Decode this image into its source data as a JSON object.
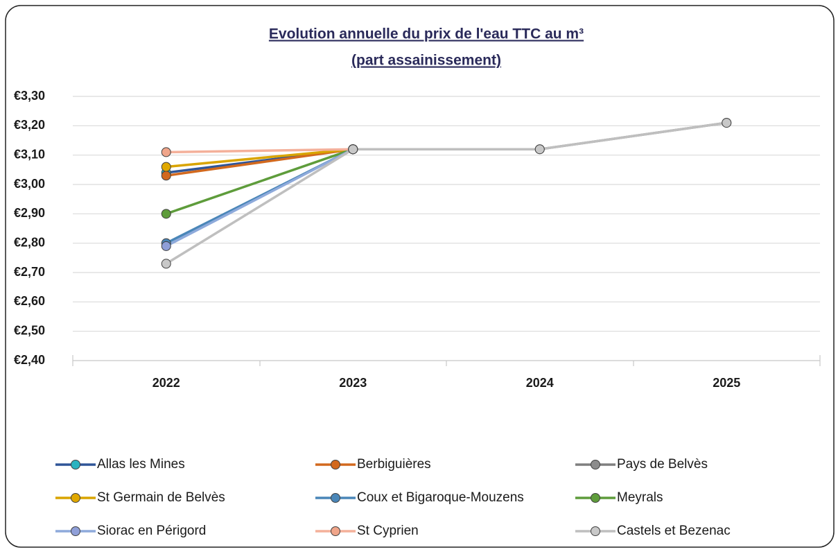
{
  "chart_data": {
    "type": "line",
    "title": "Evolution annuelle du prix de l'eau TTC au m³",
    "subtitle": "(part assainissement)",
    "categories": [
      "2022",
      "2023",
      "2024",
      "2025"
    ],
    "ylim": [
      2.4,
      3.3
    ],
    "yticks": [
      {
        "value": 2.4,
        "label": "€2,40"
      },
      {
        "value": 2.5,
        "label": "€2,50"
      },
      {
        "value": 2.6,
        "label": "€2,60"
      },
      {
        "value": 2.7,
        "label": "€2,70"
      },
      {
        "value": 2.8,
        "label": "€2,80"
      },
      {
        "value": 2.9,
        "label": "€2,90"
      },
      {
        "value": 3.0,
        "label": "€3,00"
      },
      {
        "value": 3.1,
        "label": "€3,10"
      },
      {
        "value": 3.2,
        "label": "€3,20"
      },
      {
        "value": 3.3,
        "label": "€3,30"
      }
    ],
    "grid": true,
    "legend": "bottom",
    "series": [
      {
        "name": "Allas les Mines",
        "color": "#2f5597",
        "marker_color": "#2bb3c0",
        "values": [
          3.04,
          3.12,
          null,
          null
        ]
      },
      {
        "name": "Berbiguières",
        "color": "#d2691e",
        "marker_color": "#d2691e",
        "values": [
          3.03,
          3.12,
          null,
          null
        ]
      },
      {
        "name": "Pays de Belvès",
        "color": "#7f7f7f",
        "marker_color": "#8c8c8c",
        "values": [
          null,
          3.12,
          3.12,
          3.21
        ]
      },
      {
        "name": "St Germain de Belvès",
        "color": "#d9a400",
        "marker_color": "#e0a800",
        "values": [
          3.06,
          3.12,
          null,
          null
        ]
      },
      {
        "name": "Coux et Bigaroque-Mouzens",
        "color": "#4a86b8",
        "marker_color": "#4a86b8",
        "values": [
          2.8,
          3.12,
          null,
          null
        ]
      },
      {
        "name": "Meyrals",
        "color": "#5e9c3b",
        "marker_color": "#5e9c3b",
        "values": [
          2.9,
          3.12,
          null,
          null
        ]
      },
      {
        "name": "Siorac en Périgord",
        "color": "#8eaadb",
        "marker_color": "#8f9fd8",
        "values": [
          2.79,
          3.12,
          null,
          null
        ]
      },
      {
        "name": "St Cyprien",
        "color": "#f4b09a",
        "marker_color": "#f0a58a",
        "values": [
          3.11,
          3.12,
          null,
          null
        ]
      },
      {
        "name": "Castels et Bezenac",
        "color": "#bfbfbf",
        "marker_color": "#c8c8c8",
        "values": [
          2.73,
          3.12,
          3.12,
          3.21
        ]
      }
    ]
  }
}
